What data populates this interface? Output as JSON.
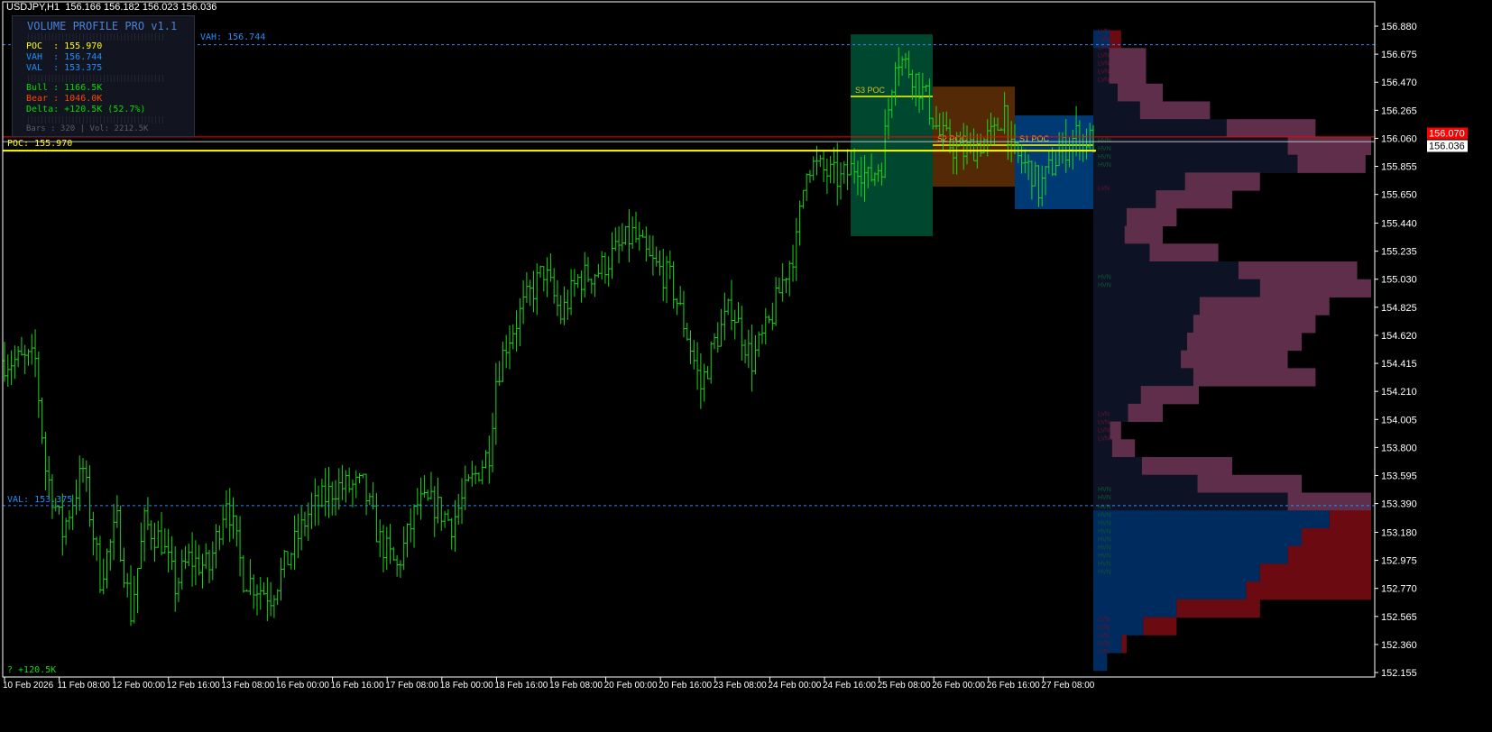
{
  "header": {
    "symbol_line": "USDJPY,H1  156.166 156.182 156.023 156.036"
  },
  "panel": {
    "title": "VOLUME PROFILE PRO v1.1",
    "poc": "POC  : 155.970",
    "vah": "VAH  : 156.744",
    "val": "VAL  : 153.375",
    "bull": "Bull : 1166.5K",
    "bear": "Bear : 1046.0K",
    "delta": "Delta: +120.5K (52.7%)",
    "footer": "Bars : 320 | Vol: 2212.5K",
    "separator": "||||||||||||||||||||||||||||||||||||||||"
  },
  "levels": {
    "vah": {
      "price": 156.744,
      "label": "VAH: 156.744",
      "color": "#1e90ff"
    },
    "poc": {
      "price": 155.97,
      "label": "POC: 155.970",
      "color": "#ffff00"
    },
    "val": {
      "price": 153.375,
      "label": "VAL: 153.375",
      "color": "#1e90ff"
    },
    "ask": {
      "price": 156.07,
      "label": "156.070",
      "color": "#ff0000"
    },
    "bid": {
      "price": 156.036,
      "label": "156.036",
      "color": "#c0c0c0"
    }
  },
  "delta_label": "? +120.5K",
  "sessions": [
    {
      "label": "S3 POC",
      "poc": 156.366,
      "high": 156.82,
      "low": 155.345,
      "color": "#00472f"
    },
    {
      "label": "S2 POC",
      "poc": 156.01,
      "high": 156.438,
      "low": 155.707,
      "color": "#532a05"
    },
    {
      "label": "S1 POC",
      "poc": 156.01,
      "high": 156.227,
      "low": 155.542,
      "color": "#003a74"
    }
  ],
  "price_axis": [
    "156.880",
    "156.675",
    "156.470",
    "156.265",
    "156.060",
    "155.855",
    "155.650",
    "155.440",
    "155.235",
    "155.030",
    "154.825",
    "154.620",
    "154.415",
    "154.210",
    "154.005",
    "153.800",
    "153.595",
    "153.390",
    "153.180",
    "152.975",
    "152.770",
    "152.565",
    "152.360",
    "152.155"
  ],
  "time_axis": [
    "10 Feb 2026",
    "11 Feb 08:00",
    "12 Feb 00:00",
    "12 Feb 16:00",
    "13 Feb 08:00",
    "16 Feb 00:00",
    "16 Feb 16:00",
    "17 Feb 08:00",
    "18 Feb 00:00",
    "18 Feb 16:00",
    "19 Feb 08:00",
    "20 Feb 00:00",
    "20 Feb 16:00",
    "23 Feb 08:00",
    "24 Feb 00:00",
    "24 Feb 16:00",
    "25 Feb 08:00",
    "26 Feb 00:00",
    "26 Feb 16:00",
    "27 Feb 08:00"
  ],
  "price_path": [
    [
      0,
      154.434
    ],
    [
      9,
      154.434
    ],
    [
      12,
      153.643
    ],
    [
      17,
      153.182
    ],
    [
      23,
      153.643
    ],
    [
      28,
      152.852
    ],
    [
      33,
      153.248
    ],
    [
      37,
      152.589
    ],
    [
      41,
      153.248
    ],
    [
      46,
      153.116
    ],
    [
      50,
      152.786
    ],
    [
      54,
      152.984
    ],
    [
      60,
      152.918
    ],
    [
      65,
      153.446
    ],
    [
      70,
      152.852
    ],
    [
      78,
      152.72
    ],
    [
      83,
      152.984
    ],
    [
      89,
      153.314
    ],
    [
      97,
      153.512
    ],
    [
      105,
      153.512
    ],
    [
      110,
      153.116
    ],
    [
      115,
      152.918
    ],
    [
      121,
      153.38
    ],
    [
      126,
      153.38
    ],
    [
      131,
      153.248
    ],
    [
      136,
      153.512
    ],
    [
      142,
      153.775
    ],
    [
      144,
      154.303
    ],
    [
      147,
      154.566
    ],
    [
      152,
      154.83
    ],
    [
      158,
      155.094
    ],
    [
      163,
      154.764
    ],
    [
      168,
      155.028
    ],
    [
      174,
      155.094
    ],
    [
      179,
      155.225
    ],
    [
      184,
      155.357
    ],
    [
      189,
      155.16
    ],
    [
      195,
      155.028
    ],
    [
      200,
      154.632
    ],
    [
      204,
      154.237
    ],
    [
      208,
      154.566
    ],
    [
      213,
      154.83
    ],
    [
      219,
      154.434
    ],
    [
      224,
      154.698
    ],
    [
      229,
      155.094
    ],
    [
      232,
      155.291
    ],
    [
      235,
      155.885
    ],
    [
      240,
      155.819
    ],
    [
      245,
      155.753
    ],
    [
      250,
      155.885
    ],
    [
      253,
      155.753
    ],
    [
      257,
      155.885
    ],
    [
      261,
      156.676
    ],
    [
      266,
      156.544
    ],
    [
      270,
      156.346
    ],
    [
      274,
      156.082
    ],
    [
      280,
      155.951
    ],
    [
      285,
      156.016
    ],
    [
      290,
      156.082
    ],
    [
      293,
      156.28
    ],
    [
      295,
      155.951
    ],
    [
      301,
      155.819
    ],
    [
      303,
      155.687
    ],
    [
      309,
      155.951
    ],
    [
      314,
      156.082
    ],
    [
      319,
      156.036
    ]
  ],
  "profile": {
    "top_price": 156.85,
    "step": 0.13,
    "volume": [
      0.1,
      0.19,
      0.19,
      0.25,
      0.42,
      0.8,
      1.0,
      0.98,
      0.6,
      0.5,
      0.3,
      0.25,
      0.45,
      0.95,
      1.0,
      0.85,
      0.8,
      0.75,
      0.7,
      0.8,
      0.38,
      0.25,
      0.1,
      0.15,
      0.5,
      0.75,
      1.0,
      1.0,
      1.0,
      1.0,
      1.0,
      1.0,
      0.6,
      0.3,
      0.12,
      0.05
    ],
    "bull_share": [
      0.6,
      0.3,
      0.3,
      0.35,
      0.4,
      0.6,
      0.7,
      0.75,
      0.55,
      0.45,
      0.4,
      0.45,
      0.45,
      0.55,
      0.6,
      0.45,
      0.45,
      0.45,
      0.45,
      0.45,
      0.45,
      0.5,
      0.6,
      0.45,
      0.35,
      0.5,
      0.7,
      0.85,
      0.75,
      0.7,
      0.6,
      0.55,
      0.5,
      0.6,
      0.85,
      1.0
    ],
    "hvn_prices": [
      156.05,
      156.0,
      155.95,
      155.9,
      155.05,
      155.0,
      153.5,
      153.45,
      153.37,
      153.33,
      153.28,
      153.22,
      153.15,
      153.1,
      153.04,
      152.97,
      152.92
    ],
    "lvn_prices": [
      156.85,
      156.8,
      156.75,
      156.7,
      156.65,
      156.6,
      156.55,
      155.7,
      154.05,
      154.0,
      153.95,
      153.9,
      152.55,
      152.5,
      152.45,
      152.4,
      152.35
    ],
    "colors": {
      "bull_va": "#0e1225",
      "bear_va": "#5e2e4a",
      "bull_low": "#002b5e",
      "bear_low": "#6b0a10",
      "hvn": "#0a5a30",
      "lvn": "#6a1030"
    }
  }
}
